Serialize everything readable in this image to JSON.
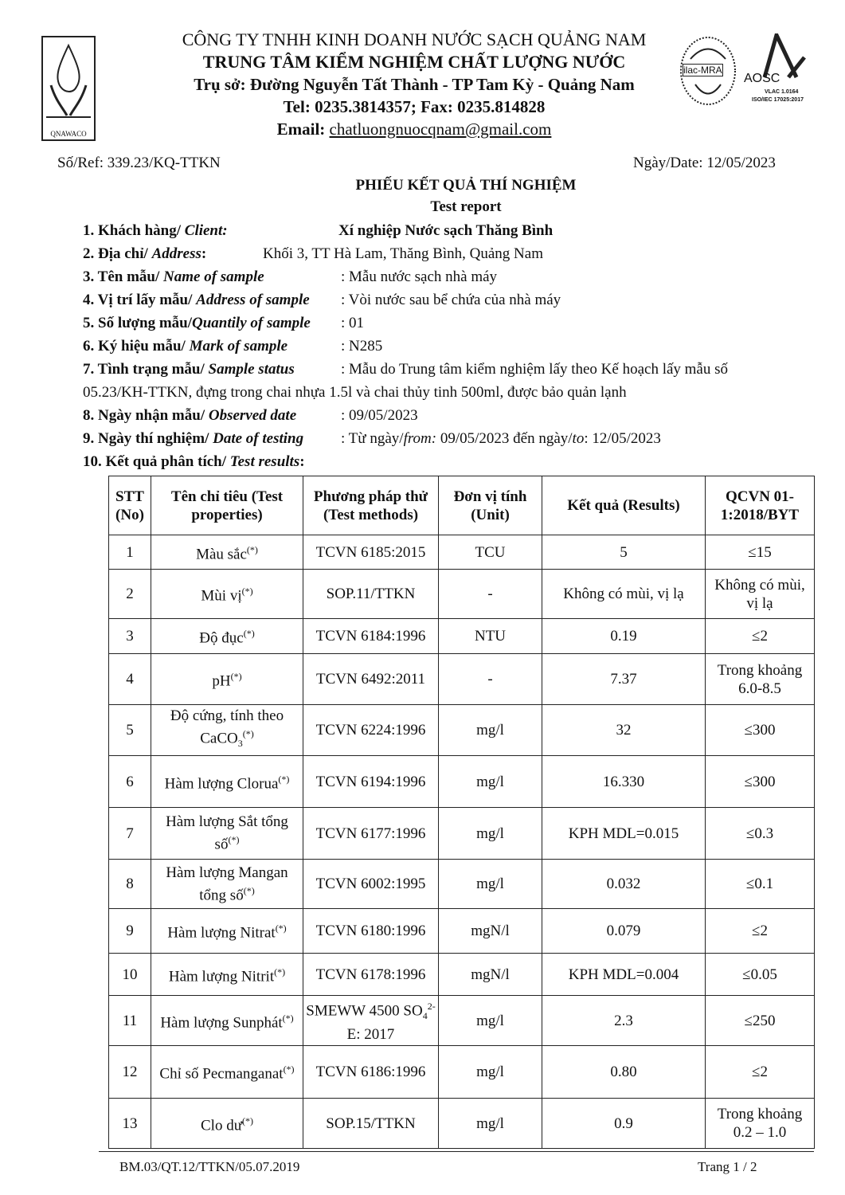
{
  "header": {
    "company": "CÔNG TY TNHH KINH DOANH NƯỚC SẠCH QUẢNG NAM",
    "center": "TRUNG TÂM KIỂM NGHIỆM CHẤT LƯỢNG NƯỚC",
    "address": "Trụ sở: Đường Nguyễn Tất Thành - TP Tam Kỳ -  Quảng Nam",
    "phone": "Tel: 0235.3814357; Fax: 0235.814828",
    "email_label": "Email: ",
    "email": "chatluongnuocqnam@gmail.com",
    "logo_left_text": "QNAWACO",
    "logo_ilac_text": "ilac-MRA",
    "logo_aosc_text": "AOSC",
    "logo_aosc_sub1": "VLAC 1.0164",
    "logo_aosc_sub2": "ISO/IEC 17025:2017"
  },
  "ref": "Số/Ref: 339.23/KQ-TTKN",
  "date": "Ngày/Date: 12/05/2023",
  "title": "PHIẾU KẾT QUẢ THÍ NGHIỆM",
  "subtitle": "Test report",
  "info": [
    {
      "label": "1. Khách hàng/ ",
      "label_en": "Client:",
      "value": "Xí nghiệp Nước sạch Thăng Bình"
    },
    {
      "label": "2. Địa chỉ/ ",
      "label_en": "Address",
      "label_tail": ":",
      "value": "Khối 3, TT Hà Lam, Thăng Bình, Quảng Nam"
    },
    {
      "label": "3. Tên mẫu/ ",
      "label_en": "Name of sample",
      "value": ": Mẫu nước sạch nhà máy"
    },
    {
      "label": "4. Vị trí lấy mẫu/ ",
      "label_en": "Address of sample",
      "value": ": Vòi nước sau bể chứa của nhà máy"
    },
    {
      "label": "5. Số lượng mẫu/",
      "label_en": "Quantily of sample",
      "value": ": 01"
    },
    {
      "label": "6. Ký hiệu mẫu/ ",
      "label_en": "Mark of sample",
      "value": ": N285"
    },
    {
      "label": "7. Tình trạng mẫu/ ",
      "label_en": "Sample status",
      "value": ": Mẫu do Trung tâm kiểm nghiệm lấy theo Kế hoạch lấy mẫu số",
      "value2": "05.23/KH-TTKN, đựng trong chai nhựa 1.5l và chai thủy tinh 500ml, được bảo quản lạnh"
    },
    {
      "label": "8. Ngày nhận mẫu/ ",
      "label_en": "Observed date",
      "value": ": 09/05/2023"
    },
    {
      "label": "9. Ngày thí nghiệm/ ",
      "label_en": "Date of testing",
      "value": ": Từ ngày/",
      "value_i": "from:",
      "value_b": " 09/05/2023  đến ngày/",
      "value_i2": "to",
      "value_c": ": 12/05/2023"
    },
    {
      "label": "10. Kết quả phân tích/ ",
      "label_en": "Test results",
      "label_tail": ":"
    }
  ],
  "table": {
    "headers": [
      "STT (No)",
      "Tên chỉ tiêu (Test properties)",
      "Phương pháp thử (Test methods)",
      "Đơn vị tính (Unit)",
      "Kết quả (Results)",
      "QCVN 01-1:2018/BYT"
    ],
    "rows": [
      {
        "no": "1",
        "name": "Màu sắc",
        "sup": "(*)",
        "method": "TCVN 6185:2015",
        "unit": "TCU",
        "result": "5",
        "limit": "≤15"
      },
      {
        "no": "2",
        "name": "Mùi vị",
        "sup": "(*)",
        "method": "SOP.11/TTKN",
        "unit": "-",
        "result": "Không có mùi, vị lạ",
        "limit": "Không có mùi, vị lạ"
      },
      {
        "no": "3",
        "name": "Độ đục",
        "sup": "(*)",
        "method": "TCVN 6184:1996",
        "unit": "NTU",
        "result": "0.19",
        "limit": "≤2"
      },
      {
        "no": "4",
        "name": "pH",
        "sup": "(*)",
        "method": "TCVN 6492:2011",
        "unit": "-",
        "result": "7.37",
        "limit": "Trong khoảng 6.0-8.5"
      },
      {
        "no": "5",
        "name": "Độ cứng, tính theo CaCO",
        "sub": "3",
        "sup": "(*)",
        "method": "TCVN 6224:1996",
        "unit": "mg/l",
        "result": "32",
        "limit": "≤300"
      },
      {
        "no": "6",
        "name": "Hàm lượng Clorua",
        "sup": "(*)",
        "method": "TCVN 6194:1996",
        "unit": "mg/l",
        "result": "16.330",
        "limit": "≤300"
      },
      {
        "no": "7",
        "name": "Hàm lượng Sắt tổng số",
        "sup": "(*)",
        "method": "TCVN 6177:1996",
        "unit": "mg/l",
        "result": "KPH MDL=0.015",
        "limit": "≤0.3"
      },
      {
        "no": "8",
        "name": "Hàm lượng Mangan tổng số",
        "sup": "(*)",
        "method": "TCVN 6002:1995",
        "unit": "mg/l",
        "result": "0.032",
        "limit": "≤0.1"
      },
      {
        "no": "9",
        "name": "Hàm lượng Nitrat",
        "sup": "(*)",
        "method": "TCVN 6180:1996",
        "unit": "mgN/l",
        "result": "0.079",
        "limit": "≤2"
      },
      {
        "no": "10",
        "name": "Hàm lượng Nitrit",
        "sup": "(*)",
        "method": "TCVN 6178:1996",
        "unit": "mgN/l",
        "result": "KPH MDL=0.004",
        "limit": "≤0.05"
      },
      {
        "no": "11",
        "name": "Hàm lượng Sunphát",
        "sup": "(*)",
        "method": "SMEWW 4500 SO",
        "method_sub": "4",
        "method_sup": "2-",
        "method_tail": " E: 2017",
        "unit": "mg/l",
        "result": "2.3",
        "limit": "≤250"
      },
      {
        "no": "12",
        "name": "Chỉ số Pecmanganat",
        "sup": "(*)",
        "method": "TCVN 6186:1996",
        "unit": "mg/l",
        "result": "0.80",
        "limit": "≤2"
      },
      {
        "no": "13",
        "name": "Clo dư",
        "sup": "(*)",
        "method": "SOP.15/TTKN",
        "unit": "mg/l",
        "result": "0.9",
        "limit": "Trong khoảng 0.2 – 1.0"
      }
    ]
  },
  "footer": {
    "form_code": "BM.03/QT.12/TTKN/05.07.2019",
    "page": "Trang 1 / 2"
  }
}
